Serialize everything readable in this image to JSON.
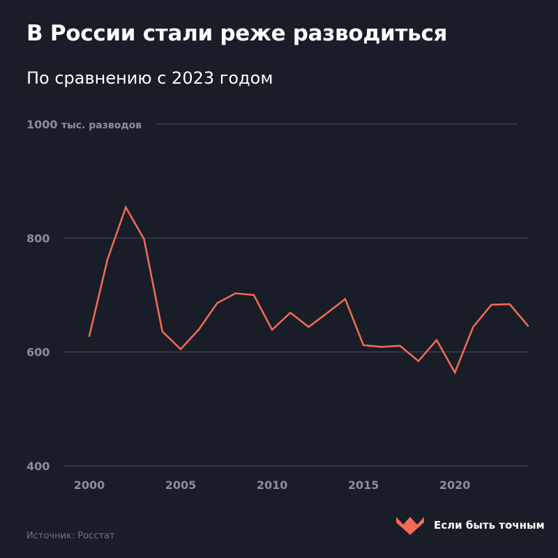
{
  "title": "В России стали реже разводиться",
  "subtitle": "По сравнению с 2023 годом",
  "source": "Источник: Росстат",
  "brand": {
    "name": "Если быть точным",
    "logo_icon": "heart-wave-logo-icon"
  },
  "colors": {
    "background": "#181d27",
    "line": "#f06a55",
    "grid": "#4a4f5a",
    "axis_text": "#8a8f9a"
  },
  "chart_data": {
    "type": "line",
    "title": "В России стали реже разводиться",
    "subtitle": "По сравнению с 2023 годом",
    "unit_label": "тыс. разводов",
    "x": [
      2000,
      2001,
      2002,
      2003,
      2004,
      2005,
      2006,
      2007,
      2008,
      2009,
      2010,
      2011,
      2012,
      2013,
      2014,
      2015,
      2016,
      2017,
      2018,
      2019,
      2020,
      2021,
      2022,
      2023,
      2024
    ],
    "series": [
      {
        "values": [
          628,
          763,
          854,
          798,
          636,
          605,
          640,
          686,
          703,
          700,
          639,
          669,
          644,
          668,
          693,
          612,
          609,
          611,
          584,
          621,
          564,
          644,
          683,
          684,
          646
        ]
      }
    ],
    "xticks": [
      2000,
      2005,
      2010,
      2015,
      2020
    ],
    "yticks": [
      400,
      600,
      800,
      1000
    ],
    "xlim": [
      2000,
      2024
    ],
    "ylim": [
      400,
      1000
    ],
    "grid": true
  }
}
